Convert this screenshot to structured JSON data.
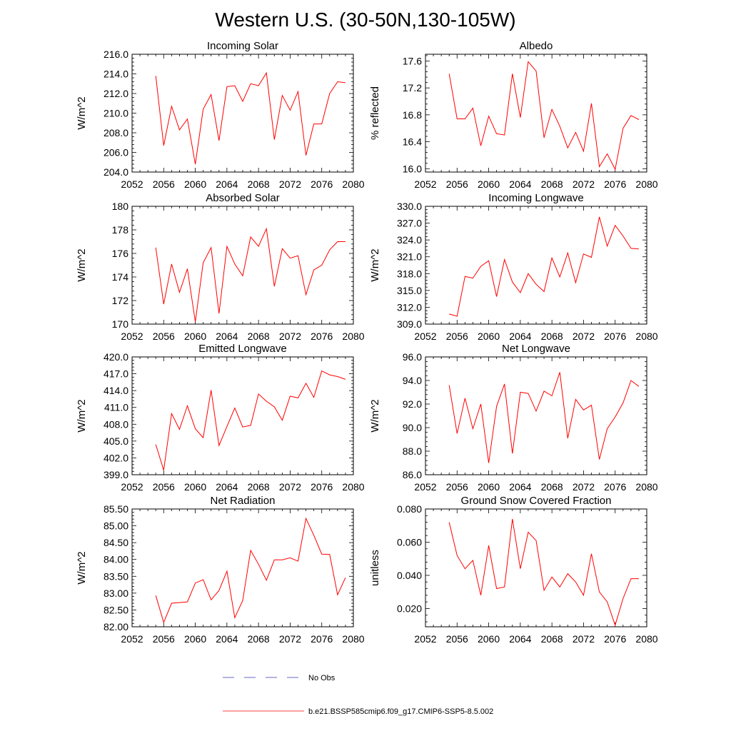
{
  "title": "Western U.S. (30-50N,130-105W)",
  "chart_data": [
    {
      "type": "line",
      "title": "Incoming Solar",
      "ylabel": "W/m^2",
      "xlim": [
        2052,
        2080
      ],
      "ylim": [
        204,
        216
      ],
      "xticks": [
        "2052",
        "2056",
        "2060",
        "2064",
        "2068",
        "2072",
        "2076",
        "2080"
      ],
      "yticks": [
        "204.0",
        "206.0",
        "208.0",
        "210.0",
        "212.0",
        "214.0",
        "216.0"
      ],
      "x": [
        2055,
        2056,
        2057,
        2058,
        2059,
        2060,
        2061,
        2062,
        2063,
        2064,
        2065,
        2066,
        2067,
        2068,
        2069,
        2070,
        2071,
        2072,
        2073,
        2074,
        2075,
        2076,
        2077,
        2078,
        2079
      ],
      "series": [
        {
          "name": "b.e21.BSSP585cmip6.f09_g17.CMIP6-SSP5-8.5.002",
          "values": [
            213.8,
            206.7,
            210.7,
            208.3,
            209.4,
            204.8,
            210.4,
            211.9,
            207.2,
            212.7,
            212.8,
            211.2,
            213.0,
            212.8,
            214.1,
            207.3,
            211.8,
            210.3,
            212.2,
            205.7,
            208.9,
            208.9,
            212.0,
            213.2,
            213.1
          ]
        }
      ]
    },
    {
      "type": "line",
      "title": "Albedo",
      "ylabel": "% reflected",
      "xlim": [
        2052,
        2080
      ],
      "ylim": [
        15.95,
        17.7
      ],
      "xticks": [
        "2052",
        "2056",
        "2060",
        "2064",
        "2068",
        "2072",
        "2076",
        "2080"
      ],
      "yticks": [
        "16.0",
        "16.4",
        "16.8",
        "17.2",
        "17.6"
      ],
      "x": [
        2055,
        2056,
        2057,
        2058,
        2059,
        2060,
        2061,
        2062,
        2063,
        2064,
        2065,
        2066,
        2067,
        2068,
        2069,
        2070,
        2071,
        2072,
        2073,
        2074,
        2075,
        2076,
        2077,
        2078,
        2079
      ],
      "series": [
        {
          "name": "b.e21.BSSP585cmip6.f09_g17.CMIP6-SSP5-8.5.002",
          "values": [
            17.41,
            16.74,
            16.74,
            16.9,
            16.34,
            16.78,
            16.52,
            16.5,
            17.41,
            16.76,
            17.59,
            17.45,
            16.46,
            16.88,
            16.63,
            16.31,
            16.54,
            16.26,
            16.97,
            16.03,
            16.22,
            15.99,
            16.6,
            16.79,
            16.73
          ]
        }
      ]
    },
    {
      "type": "line",
      "title": "Absorbed Solar",
      "ylabel": "W/m^2",
      "xlim": [
        2052,
        2080
      ],
      "ylim": [
        170,
        180
      ],
      "xticks": [
        "2052",
        "2056",
        "2060",
        "2064",
        "2068",
        "2072",
        "2076",
        "2080"
      ],
      "yticks": [
        "170",
        "172",
        "174",
        "176",
        "178",
        "180"
      ],
      "x": [
        2055,
        2056,
        2057,
        2058,
        2059,
        2060,
        2061,
        2062,
        2063,
        2064,
        2065,
        2066,
        2067,
        2068,
        2069,
        2070,
        2071,
        2072,
        2073,
        2074,
        2075,
        2076,
        2077,
        2078,
        2079
      ],
      "series": [
        {
          "name": "b.e21.BSSP585cmip6.f09_g17.CMIP6-SSP5-8.5.002",
          "values": [
            176.5,
            171.7,
            175.1,
            172.7,
            174.7,
            170.2,
            175.2,
            176.5,
            170.9,
            176.6,
            175.1,
            174.1,
            177.4,
            176.6,
            178.1,
            173.2,
            176.4,
            175.6,
            175.8,
            172.5,
            174.6,
            175.0,
            176.3,
            177.0,
            177.0
          ]
        }
      ]
    },
    {
      "type": "line",
      "title": "Incoming Longwave",
      "ylabel": "W/m^2",
      "xlim": [
        2052,
        2080
      ],
      "ylim": [
        309,
        330
      ],
      "xticks": [
        "2052",
        "2056",
        "2060",
        "2064",
        "2068",
        "2072",
        "2076",
        "2080"
      ],
      "yticks": [
        "309.0",
        "312.0",
        "315.0",
        "318.0",
        "321.0",
        "324.0",
        "327.0",
        "330.0"
      ],
      "x": [
        2055,
        2056,
        2057,
        2058,
        2059,
        2060,
        2061,
        2062,
        2063,
        2064,
        2065,
        2066,
        2067,
        2068,
        2069,
        2070,
        2071,
        2072,
        2073,
        2074,
        2075,
        2076,
        2077,
        2078,
        2079
      ],
      "series": [
        {
          "name": "b.e21.BSSP585cmip6.f09_g17.CMIP6-SSP5-8.5.002",
          "values": [
            310.8,
            310.4,
            317.5,
            317.2,
            319.3,
            320.3,
            313.9,
            320.5,
            316.5,
            314.6,
            318.0,
            316.1,
            314.8,
            320.8,
            317.4,
            321.7,
            316.4,
            321.5,
            320.9,
            328.1,
            322.9,
            326.6,
            324.7,
            322.5,
            322.4
          ]
        }
      ]
    },
    {
      "type": "line",
      "title": "Emitted Longwave",
      "ylabel": "W/m^2",
      "xlim": [
        2052,
        2080
      ],
      "ylim": [
        399,
        420
      ],
      "xticks": [
        "2052",
        "2056",
        "2060",
        "2064",
        "2068",
        "2072",
        "2076",
        "2080"
      ],
      "yticks": [
        "399.0",
        "402.0",
        "405.0",
        "408.0",
        "411.0",
        "414.0",
        "417.0",
        "420.0"
      ],
      "x": [
        2055,
        2056,
        2057,
        2058,
        2059,
        2060,
        2061,
        2062,
        2063,
        2064,
        2065,
        2066,
        2067,
        2068,
        2069,
        2070,
        2071,
        2072,
        2073,
        2074,
        2075,
        2076,
        2077,
        2078,
        2079
      ],
      "series": [
        {
          "name": "b.e21.BSSP585cmip6.f09_g17.CMIP6-SSP5-8.5.002",
          "values": [
            404.4,
            399.8,
            409.9,
            407.1,
            411.3,
            407.2,
            405.6,
            414.1,
            404.2,
            407.6,
            410.9,
            407.5,
            407.8,
            413.4,
            412.1,
            411.1,
            408.7,
            413.0,
            412.7,
            415.3,
            412.8,
            417.5,
            416.8,
            416.5,
            416.0
          ]
        }
      ]
    },
    {
      "type": "line",
      "title": "Net Longwave",
      "ylabel": "W/m^2",
      "xlim": [
        2052,
        2080
      ],
      "ylim": [
        86,
        96
      ],
      "xticks": [
        "2052",
        "2056",
        "2060",
        "2064",
        "2068",
        "2072",
        "2076",
        "2080"
      ],
      "yticks": [
        "86.0",
        "88.0",
        "90.0",
        "92.0",
        "94.0",
        "96.0"
      ],
      "x": [
        2055,
        2056,
        2057,
        2058,
        2059,
        2060,
        2061,
        2062,
        2063,
        2064,
        2065,
        2066,
        2067,
        2068,
        2069,
        2070,
        2071,
        2072,
        2073,
        2074,
        2075,
        2076,
        2077,
        2078,
        2079
      ],
      "series": [
        {
          "name": "b.e21.BSSP585cmip6.f09_g17.CMIP6-SSP5-8.5.002",
          "values": [
            93.6,
            89.5,
            92.5,
            89.9,
            92.0,
            87.0,
            91.8,
            93.7,
            87.8,
            93.0,
            92.9,
            91.4,
            93.1,
            92.7,
            94.7,
            89.1,
            92.4,
            91.5,
            91.9,
            87.3,
            89.9,
            90.9,
            92.1,
            94.0,
            93.5
          ]
        }
      ]
    },
    {
      "type": "line",
      "title": "Net Radiation",
      "ylabel": "W/m^2",
      "xlim": [
        2052,
        2080
      ],
      "ylim": [
        82,
        85.5
      ],
      "xticks": [
        "2052",
        "2056",
        "2060",
        "2064",
        "2068",
        "2072",
        "2076",
        "2080"
      ],
      "yticks": [
        "82.00",
        "82.50",
        "83.00",
        "83.50",
        "84.00",
        "84.50",
        "85.00",
        "85.50"
      ],
      "x": [
        2055,
        2056,
        2057,
        2058,
        2059,
        2060,
        2061,
        2062,
        2063,
        2064,
        2065,
        2066,
        2067,
        2068,
        2069,
        2070,
        2071,
        2072,
        2073,
        2074,
        2075,
        2076,
        2077,
        2078,
        2079
      ],
      "series": [
        {
          "name": "b.e21.BSSP585cmip6.f09_g17.CMIP6-SSP5-8.5.002",
          "values": [
            82.93,
            82.13,
            82.7,
            82.72,
            82.74,
            83.3,
            83.4,
            82.8,
            83.08,
            83.65,
            82.27,
            82.78,
            84.27,
            83.86,
            83.38,
            83.99,
            83.99,
            84.05,
            83.95,
            85.22,
            84.72,
            84.16,
            84.15,
            82.95,
            83.46
          ]
        }
      ]
    },
    {
      "type": "line",
      "title": "Ground Snow Covered Fraction",
      "ylabel": "unitless",
      "xlim": [
        2052,
        2080
      ],
      "ylim": [
        0.009,
        0.08
      ],
      "xticks": [
        "2052",
        "2056",
        "2060",
        "2064",
        "2068",
        "2072",
        "2076",
        "2080"
      ],
      "yticks": [
        "0.020",
        "0.040",
        "0.060",
        "0.080"
      ],
      "x": [
        2055,
        2056,
        2057,
        2058,
        2059,
        2060,
        2061,
        2062,
        2063,
        2064,
        2065,
        2066,
        2067,
        2068,
        2069,
        2070,
        2071,
        2072,
        2073,
        2074,
        2075,
        2076,
        2077,
        2078,
        2079
      ],
      "series": [
        {
          "name": "b.e21.BSSP585cmip6.f09_g17.CMIP6-SSP5-8.5.002",
          "values": [
            0.072,
            0.052,
            0.044,
            0.049,
            0.028,
            0.058,
            0.032,
            0.033,
            0.074,
            0.044,
            0.066,
            0.061,
            0.031,
            0.039,
            0.033,
            0.041,
            0.036,
            0.028,
            0.053,
            0.03,
            0.024,
            0.01,
            0.026,
            0.038,
            0.038
          ]
        }
      ]
    }
  ],
  "legend": {
    "items": [
      {
        "label": "No Obs",
        "color": "#3a3aaa",
        "style": "dashed"
      },
      {
        "label": "b.e21.BSSP585cmip6.f09_g17.CMIP6-SSP5-8.5.002",
        "color": "#ff0000",
        "style": "solid"
      }
    ]
  }
}
